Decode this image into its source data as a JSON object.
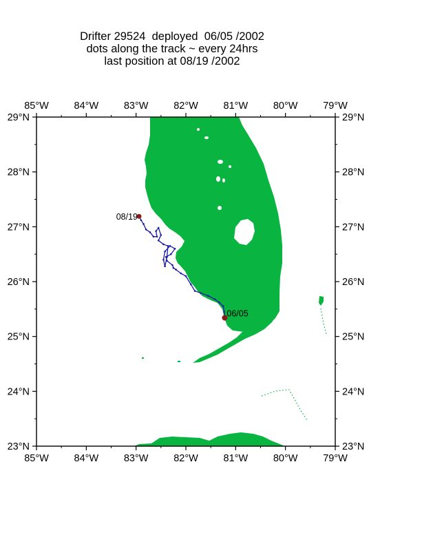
{
  "title": {
    "line1": "Drifter 29524  deployed  06/05 /2002",
    "line2": "dots along the track ~ every 24hrs",
    "line3": "last position at 08/19 /2002"
  },
  "map": {
    "lon_range": [
      -85,
      -79
    ],
    "lat_range": [
      23,
      29
    ],
    "lon_ticks": [
      "85°W",
      "84°W",
      "83°W",
      "82°W",
      "81°W",
      "80°W",
      "79°W"
    ],
    "lat_ticks": [
      "23°N",
      "24°N",
      "25°N",
      "26°N",
      "27°N",
      "28°N",
      "29°N"
    ],
    "colors": {
      "land": "#0ab441",
      "track": "#1a1aa8",
      "end_marker": "#8b1a1a",
      "frame": "#000000"
    }
  },
  "drifter": {
    "start_label": "06/05",
    "end_label": "08/19",
    "start": {
      "lon": -81.22,
      "lat": 25.34
    },
    "end": {
      "lon": -82.94,
      "lat": 27.19
    },
    "track": [
      [
        -81.22,
        25.34
      ],
      [
        -81.23,
        25.45
      ],
      [
        -81.25,
        25.55
      ],
      [
        -81.33,
        25.62
      ],
      [
        -81.42,
        25.68
      ],
      [
        -81.55,
        25.74
      ],
      [
        -81.7,
        25.79
      ],
      [
        -81.82,
        25.83
      ],
      [
        -81.9,
        25.95
      ],
      [
        -82.0,
        26.1
      ],
      [
        -82.1,
        26.15
      ],
      [
        -82.2,
        26.22
      ],
      [
        -82.25,
        26.25
      ],
      [
        -82.27,
        26.3
      ],
      [
        -82.38,
        26.38
      ],
      [
        -82.4,
        26.45
      ],
      [
        -82.3,
        26.5
      ],
      [
        -82.22,
        26.6
      ],
      [
        -82.32,
        26.65
      ],
      [
        -82.42,
        26.55
      ],
      [
        -82.45,
        26.4
      ],
      [
        -82.42,
        26.28
      ],
      [
        -82.38,
        26.45
      ],
      [
        -82.36,
        26.65
      ],
      [
        -82.45,
        26.68
      ],
      [
        -82.55,
        26.75
      ],
      [
        -82.5,
        26.85
      ],
      [
        -82.55,
        26.98
      ],
      [
        -82.6,
        26.92
      ],
      [
        -82.58,
        26.82
      ],
      [
        -82.65,
        26.82
      ],
      [
        -82.72,
        26.9
      ],
      [
        -82.8,
        26.95
      ],
      [
        -82.85,
        27.05
      ],
      [
        -82.9,
        27.12
      ],
      [
        -82.94,
        27.19
      ]
    ]
  }
}
